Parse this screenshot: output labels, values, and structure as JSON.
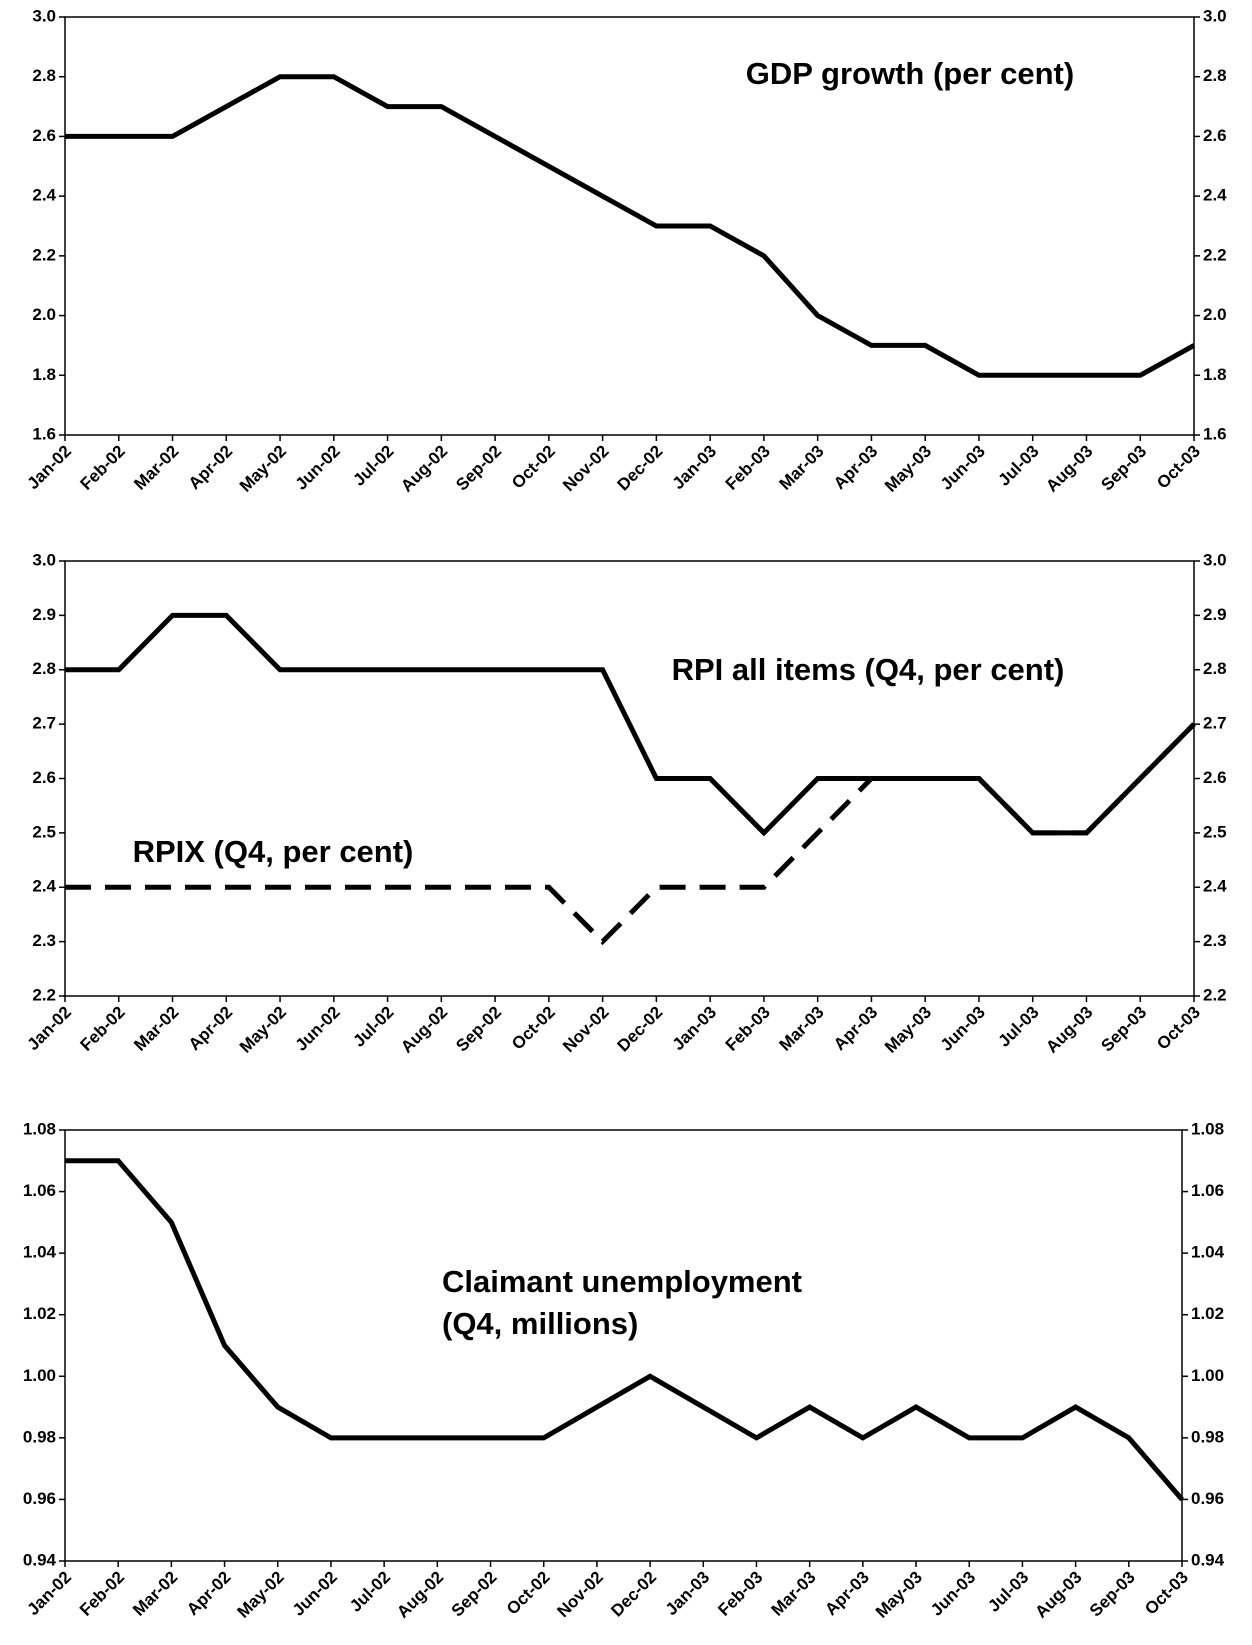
{
  "chart_data": [
    {
      "type": "line",
      "title": "GDP growth (per cent)",
      "categories": [
        "Jan-02",
        "Feb-02",
        "Mar-02",
        "Apr-02",
        "May-02",
        "Jun-02",
        "Jul-02",
        "Aug-02",
        "Sep-02",
        "Oct-02",
        "Nov-02",
        "Dec-02",
        "Jan-03",
        "Feb-03",
        "Mar-03",
        "Apr-03",
        "May-03",
        "Jun-03",
        "Jul-03",
        "Aug-03",
        "Sep-03",
        "Oct-03"
      ],
      "series": [
        {
          "color": "#000000",
          "values": [
            2.6,
            2.6,
            2.6,
            2.7,
            2.8,
            2.8,
            2.7,
            2.7,
            2.6,
            2.5,
            2.4,
            2.3,
            2.3,
            2.2,
            2.0,
            1.9,
            1.9,
            1.8,
            1.8,
            1.8,
            1.8,
            1.9
          ]
        }
      ],
      "ylim": [
        1.6,
        3.0
      ],
      "yticks": [
        1.6,
        1.8,
        {
          "value": 2.0,
          "label": "2.0"
        },
        2.2,
        2.4,
        2.6,
        2.8,
        {
          "value": 3.0,
          "label": "3.0"
        }
      ],
      "y2lim": [
        1.6,
        3.0
      ],
      "y2ticks": [
        1.6,
        1.8,
        {
          "value": 2.0,
          "label": "2.0"
        },
        2.2,
        2.4,
        2.6,
        2.8,
        {
          "value": 3.0,
          "label": "3.0"
        }
      ]
    },
    {
      "type": "line",
      "categories": [
        "Jan-02",
        "Feb-02",
        "Mar-02",
        "Apr-02",
        "May-02",
        "Jun-02",
        "Jul-02",
        "Aug-02",
        "Sep-02",
        "Oct-02",
        "Nov-02",
        "Dec-02",
        "Jan-03",
        "Feb-03",
        "Mar-03",
        "Apr-03",
        "May-03",
        "Jun-03",
        "Jul-03",
        "Aug-03",
        "Sep-03",
        "Oct-03"
      ],
      "series": [
        {
          "name": "RPI all items (Q4, per cent)",
          "color": "#000000",
          "dashed": false,
          "values": [
            2.8,
            2.8,
            2.9,
            2.9,
            2.8,
            2.8,
            2.8,
            2.8,
            2.8,
            2.8,
            2.8,
            2.6,
            2.6,
            2.5,
            2.6,
            2.6,
            2.6,
            2.6,
            2.5,
            2.5,
            2.6,
            2.7
          ]
        },
        {
          "name": "RPIX (Q4, per cent)",
          "color": "#000000",
          "dashed": true,
          "values": [
            2.4,
            2.4,
            2.4,
            2.4,
            2.4,
            2.4,
            2.4,
            2.4,
            2.4,
            2.4,
            2.3,
            2.4,
            2.4,
            2.4,
            2.5,
            2.6,
            2.6,
            2.6,
            2.5,
            2.5,
            2.6,
            2.7
          ]
        }
      ],
      "ylim": [
        2.2,
        3.0
      ],
      "yticks": [
        2.2,
        2.3,
        2.4,
        2.5,
        2.6,
        2.7,
        2.8,
        2.9,
        {
          "value": 3.0,
          "label": "3.0"
        }
      ],
      "y2lim": [
        2.2,
        3.0
      ],
      "y2ticks": [
        2.2,
        2.3,
        2.4,
        2.5,
        2.6,
        2.7,
        2.8,
        2.9,
        {
          "value": 3.0,
          "label": "3.0"
        }
      ]
    },
    {
      "type": "line",
      "title": [
        "Claimant unemployment",
        "(Q4, millions)"
      ],
      "categories": [
        "Jan-02",
        "Feb-02",
        "Mar-02",
        "Apr-02",
        "May-02",
        "Jun-02",
        "Jul-02",
        "Aug-02",
        "Sep-02",
        "Oct-02",
        "Nov-02",
        "Dec-02",
        "Jan-03",
        "Feb-03",
        "Mar-03",
        "Apr-03",
        "May-03",
        "Jun-03",
        "Jul-03",
        "Aug-03",
        "Sep-03",
        "Oct-03"
      ],
      "series": [
        {
          "color": "#000000",
          "values": [
            1.07,
            1.07,
            1.05,
            1.01,
            0.99,
            0.98,
            0.98,
            0.98,
            0.98,
            0.98,
            0.99,
            1.0,
            0.99,
            0.98,
            0.99,
            0.98,
            0.99,
            0.98,
            0.98,
            0.99,
            0.98,
            0.96
          ]
        }
      ],
      "ylim": [
        0.94,
        1.08
      ],
      "yticks": [
        0.94,
        0.96,
        0.98,
        {
          "value": 1.0,
          "label": "1.00"
        },
        1.02,
        1.04,
        1.06,
        1.08
      ],
      "y2lim": [
        0.94,
        1.08
      ],
      "y2ticks": [
        0.94,
        0.96,
        0.98,
        {
          "value": 1.0,
          "label": "1.00"
        },
        1.02,
        1.04,
        1.06,
        1.08
      ]
    }
  ]
}
